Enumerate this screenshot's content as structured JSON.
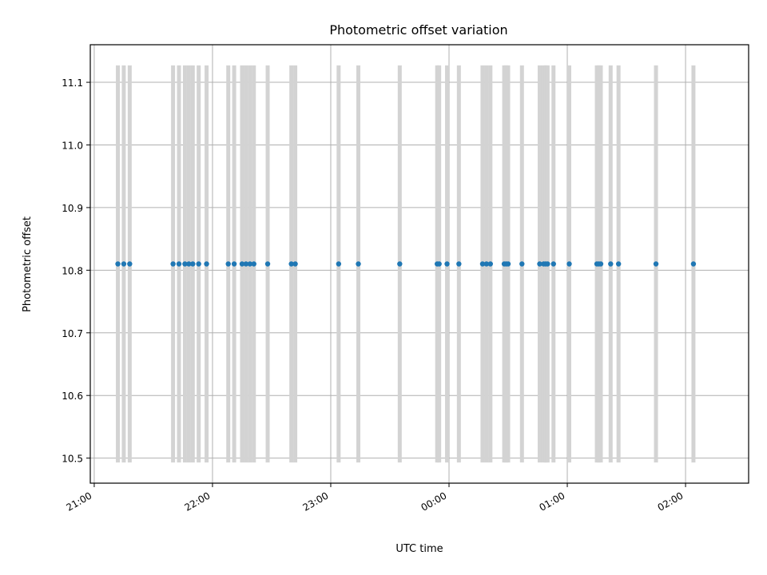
{
  "chart_data": {
    "type": "scatter",
    "title": "Photometric offset variation",
    "xlabel": "UTC time",
    "ylabel": "Photometric offset",
    "x_ticks": [
      "21:00",
      "22:00",
      "23:00",
      "00:00",
      "01:00",
      "02:00"
    ],
    "y_ticks": [
      "10.5",
      "10.6",
      "10.7",
      "10.8",
      "10.9",
      "11.0",
      "11.1"
    ],
    "xlim": [
      "20:58",
      "02:32"
    ],
    "ylim": [
      10.46,
      11.16
    ],
    "grid": true,
    "colors": {
      "points": "#1f77b4",
      "error_bars": "#d3d3d3",
      "grid": "#b0b0b0"
    },
    "series": [
      {
        "x": [
          "21:12",
          "21:15",
          "21:18",
          "21:40",
          "21:43",
          "21:46",
          "21:48",
          "21:50",
          "21:53",
          "21:57",
          "22:08",
          "22:11",
          "22:15",
          "22:17",
          "22:19",
          "22:21",
          "22:28",
          "22:40",
          "22:42",
          "23:04",
          "23:14",
          "23:35",
          "23:54",
          "23:55",
          "23:59",
          "00:05",
          "00:17",
          "00:19",
          "00:21",
          "00:28",
          "00:29",
          "00:30",
          "00:37",
          "00:46",
          "00:48",
          "00:49",
          "00:50",
          "00:53",
          "01:01",
          "01:15",
          "01:16",
          "01:17",
          "01:22",
          "01:26",
          "01:45",
          "02:04"
        ],
        "y": [
          10.81,
          10.81,
          10.81,
          10.81,
          10.81,
          10.81,
          10.81,
          10.81,
          10.81,
          10.81,
          10.81,
          10.81,
          10.81,
          10.81,
          10.81,
          10.81,
          10.81,
          10.81,
          10.81,
          10.81,
          10.81,
          10.81,
          10.81,
          10.81,
          10.81,
          10.81,
          10.81,
          10.81,
          10.81,
          10.81,
          10.81,
          10.81,
          10.81,
          10.81,
          10.81,
          10.81,
          10.81,
          10.81,
          10.81,
          10.81,
          10.81,
          10.81,
          10.81,
          10.81,
          10.81,
          10.81
        ],
        "yerr": 0.317
      }
    ]
  }
}
